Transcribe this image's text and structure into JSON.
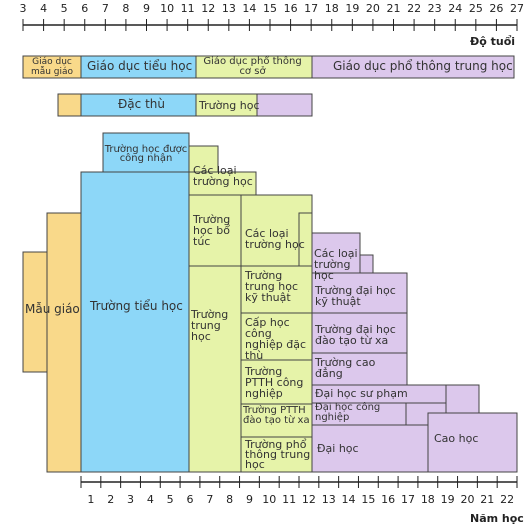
{
  "colors": {
    "yellow": "#f9d98a",
    "blue": "#8dd7f8",
    "green": "#e6f3a9",
    "purple": "#dcc8ec",
    "line": "#444444"
  },
  "top_axis": {
    "ticks": [
      "3",
      "4",
      "5",
      "6",
      "7",
      "8",
      "9",
      "10",
      "11",
      "12",
      "13",
      "14",
      "15",
      "16",
      "17",
      "18",
      "19",
      "20",
      "21",
      "22",
      "23",
      "24",
      "25",
      "26",
      "27"
    ],
    "title": "Độ tuổi"
  },
  "bottom_axis": {
    "ticks": [
      "1",
      "2",
      "3",
      "4",
      "5",
      "6",
      "7",
      "8",
      "9",
      "10",
      "11",
      "12",
      "13",
      "14",
      "15",
      "16",
      "17",
      "18",
      "19",
      "20",
      "21",
      "22"
    ],
    "title": "Năm học"
  },
  "stages": {
    "kindergarten": "Giáo dục mẫu giáo",
    "primary": "Giáo dục tiểu học",
    "lower_secondary": "Giáo dục phổ thông cơ sở",
    "upper_secondary": "Giáo dục phổ thông trung học"
  },
  "special_row": {
    "special": "Đặc thù",
    "school": "Trường học"
  },
  "blocks": {
    "kindergarten": "Mẫu giáo",
    "primary_school": "Trường tiểu học",
    "recognized_school": "Trường học được công nhận",
    "various_schools_1": "Các loại trường học",
    "supplementary_school": "Trường học bổ túc",
    "middle_school": "Trường trung học",
    "various_schools_2": "Các loại trường học",
    "technical_school": "Trường trung học kỹ thuật",
    "specialized_vocational": "Cấp học công nghiệp đặc thù",
    "industrial_high_school": "Trường PTTH công nghiệp",
    "distance_high_school": "Trường PTTH đào tạo từ xa",
    "general_high_school": "Trường phổ thông trung học",
    "various_schools_3": "Các loại trường học",
    "technical_university": "Trường đại học kỹ thuật",
    "distance_university": "Trường đại học đào tạo từ xa",
    "college": "Trường cao đẳng",
    "pedagogy_university": "Đại học sư phạm",
    "industrial_university": "Đại học công nghiệp",
    "university": "Đại học",
    "graduate": "Cao học"
  }
}
